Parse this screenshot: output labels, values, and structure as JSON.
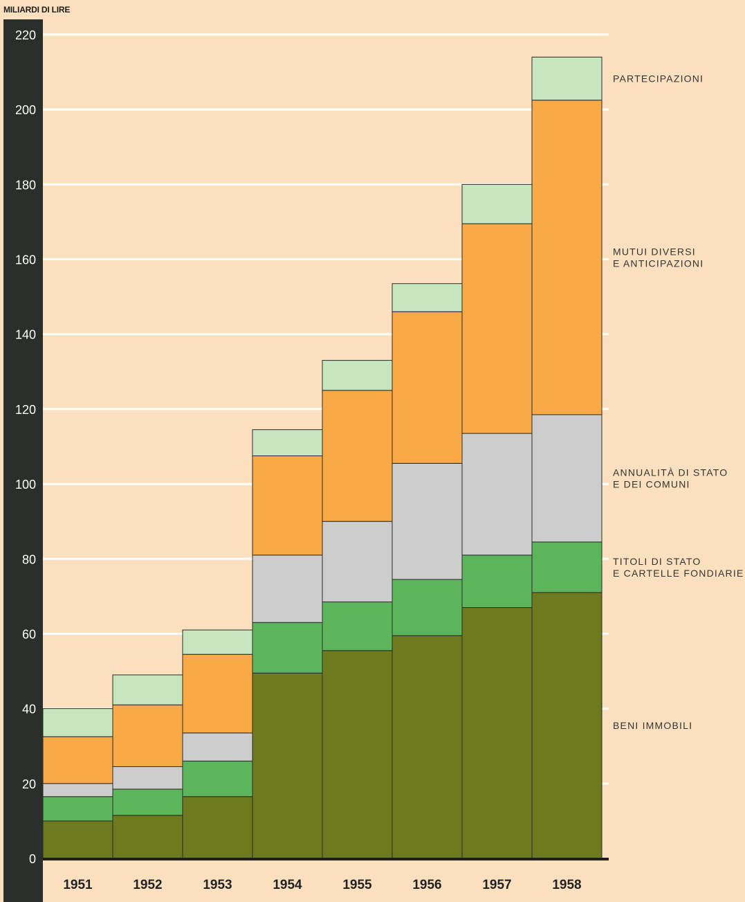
{
  "chart_data": {
    "type": "bar",
    "stacked": true,
    "ylabel": "MILIARDI DI LIRE",
    "xlabel": "",
    "ylim": [
      0,
      220
    ],
    "yticks": [
      0,
      20,
      40,
      60,
      80,
      100,
      120,
      140,
      160,
      180,
      200,
      220
    ],
    "grid": true,
    "categories": [
      "1951",
      "1952",
      "1953",
      "1954",
      "1955",
      "1956",
      "1957",
      "1958"
    ],
    "series": [
      {
        "name": "BENI IMMOBILI",
        "legend_lines": [
          "BENI IMMOBILI"
        ],
        "color": "#6e7a1e",
        "values": [
          10,
          11.5,
          16.5,
          49.5,
          55.5,
          59.5,
          67,
          71
        ]
      },
      {
        "name": "TITOLI DI STATO E CARTELLE FONDIARIE",
        "legend_lines": [
          "TITOLI DI STATO",
          "E CARTELLE FONDIARIE"
        ],
        "color": "#5cb55a",
        "values": [
          6.5,
          7,
          9.5,
          13.5,
          13,
          15,
          14,
          13.5
        ]
      },
      {
        "name": "ANNUALITÀ DI STATO E DEI COMUNI",
        "legend_lines": [
          "ANNUALITÀ DI STATO",
          "E DEI COMUNI"
        ],
        "color": "#cdcdcd",
        "values": [
          3.5,
          6,
          7.5,
          18,
          21.5,
          31,
          32.5,
          34
        ]
      },
      {
        "name": "MUTUI DIVERSI E ANTICIPAZIONI",
        "legend_lines": [
          "MUTUI DIVERSI",
          "E ANTICIPAZIONI"
        ],
        "color": "#f9aa47",
        "values": [
          12.5,
          16.5,
          21,
          26.5,
          35,
          40.5,
          56,
          84
        ]
      },
      {
        "name": "PARTECIPAZIONI",
        "legend_lines": [
          "PARTECIPAZIONI"
        ],
        "color": "#c6e6c0",
        "values": [
          7.5,
          8,
          6.5,
          7,
          8,
          7.5,
          10.5,
          11.5
        ]
      }
    ],
    "legend": "right"
  }
}
